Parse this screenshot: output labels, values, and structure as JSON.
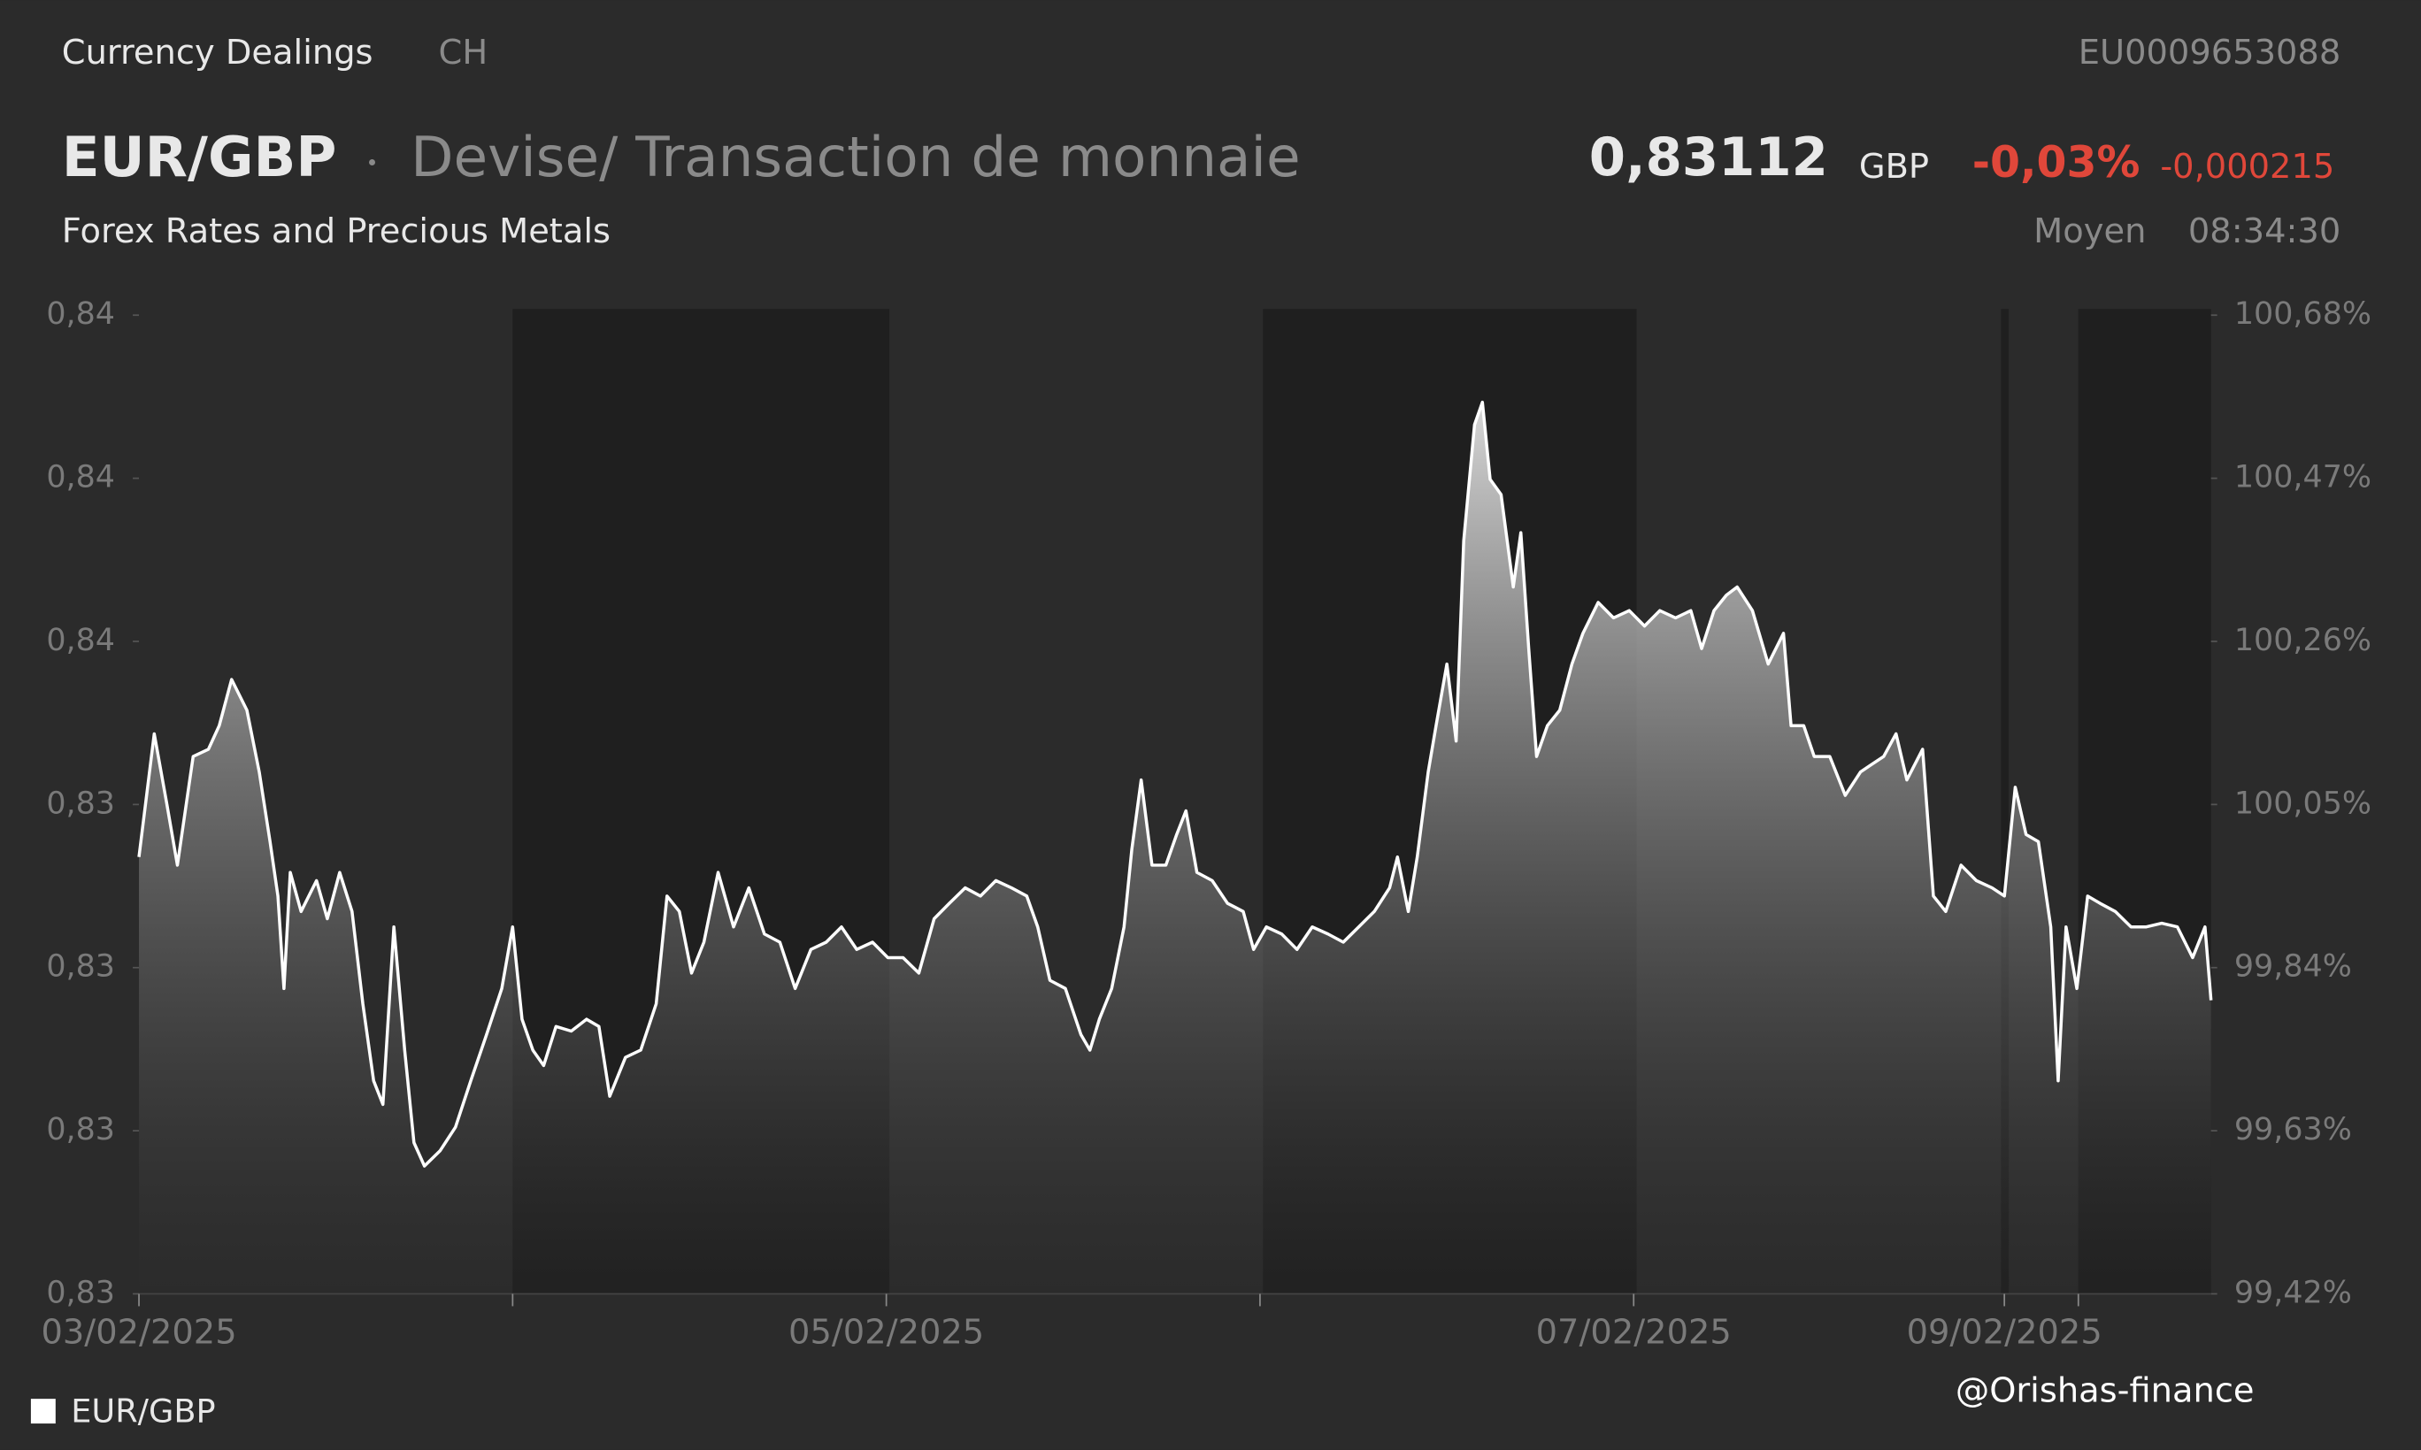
{
  "header": {
    "source": "Currency Dealings",
    "country": "CH",
    "isin": "EU0009653088",
    "symbol": "EUR/GBP",
    "description": "Devise/ Transaction de monnaie",
    "subtitle": "Forex Rates and Precious Metals",
    "price": "0,83112",
    "currency": "GBP",
    "change_pct": "-0,03%",
    "change_abs": "-0,000215",
    "price_type": "Moyen",
    "time": "08:34:30",
    "watermark": "@Orishas-finance"
  },
  "chart_data": {
    "type": "area",
    "x": [
      0,
      0.041,
      0.074,
      0.103,
      0.145,
      0.186,
      0.215,
      0.248,
      0.289,
      0.322,
      0.351,
      0.372,
      0.388,
      0.405,
      0.434,
      0.475,
      0.504,
      0.537,
      0.57,
      0.599,
      0.628,
      0.653,
      0.682,
      0.711,
      0.736,
      0.764,
      0.806,
      0.847,
      0.888,
      0.93,
      0.971,
      1,
      1.025,
      1.054,
      1.083,
      1.116,
      1.157,
      1.198,
      1.231,
      1.26,
      1.302,
      1.343,
      1.384,
      1.413,
      1.446,
      1.479,
      1.512,
      1.55,
      1.591,
      1.632,
      1.674,
      1.715,
      1.756,
      1.798,
      1.839,
      1.88,
      1.921,
      1.963,
      2.004,
      2.045,
      2.087,
      2.128,
      2.169,
      2.211,
      2.252,
      2.293,
      2.335,
      2.376,
      2.405,
      2.438,
      2.479,
      2.521,
      2.545,
      2.57,
      2.603,
      2.636,
      2.657,
      2.682,
      2.711,
      2.748,
      2.777,
      2.802,
      2.831,
      2.872,
      2.913,
      2.955,
      2.983,
      3.017,
      3.058,
      3.099,
      3.14,
      3.182,
      3.223,
      3.264,
      3.306,
      3.347,
      3.368,
      3.397,
      3.421,
      3.45,
      3.471,
      3.5,
      3.525,
      3.545,
      3.574,
      3.595,
      3.616,
      3.645,
      3.678,
      3.698,
      3.719,
      3.74,
      3.769,
      3.802,
      3.835,
      3.864,
      3.905,
      3.946,
      3.988,
      4.029,
      4.07,
      4.112,
      4.153,
      4.182,
      4.215,
      4.248,
      4.277,
      4.318,
      4.36,
      4.401,
      4.421,
      4.455,
      4.483,
      4.525,
      4.566,
      4.607,
      4.636,
      4.669,
      4.702,
      4.731,
      4.773,
      4.802,
      4.835,
      4.876,
      4.917,
      4.959,
      4.992,
      5.021,
      5.05,
      5.083,
      5.116,
      5.136,
      5.157,
      5.186,
      5.215,
      5.248,
      5.289,
      5.331,
      5.372,
      5.413,
      5.455,
      5.496,
      5.529,
      5.545
    ],
    "series": [
      {
        "name": "EUR/GBP",
        "color": "#ffffff",
        "values": [
          0.83282,
          0.83418,
          0.83342,
          0.83273,
          0.83393,
          0.83401,
          0.83427,
          0.83478,
          0.83444,
          0.83376,
          0.83299,
          0.83239,
          0.83137,
          0.83265,
          0.83222,
          0.83256,
          0.83214,
          0.83265,
          0.83222,
          0.8312,
          0.83035,
          0.83009,
          0.83205,
          0.83069,
          0.82967,
          0.82941,
          0.82958,
          0.82984,
          0.83035,
          0.83086,
          0.83137,
          0.83205,
          0.83103,
          0.83069,
          0.83052,
          0.83095,
          0.8309,
          0.83103,
          0.83095,
          0.83018,
          0.83061,
          0.83069,
          0.8312,
          0.83239,
          0.83222,
          0.83154,
          0.83188,
          0.83265,
          0.83205,
          0.83248,
          0.83197,
          0.83188,
          0.83137,
          0.8318,
          0.83188,
          0.83205,
          0.8318,
          0.83188,
          0.83171,
          0.83171,
          0.83154,
          0.83214,
          0.83231,
          0.83248,
          0.83239,
          0.83256,
          0.83248,
          0.83239,
          0.83205,
          0.83146,
          0.83137,
          0.83086,
          0.83069,
          0.83103,
          0.83137,
          0.83205,
          0.8329,
          0.83367,
          0.83273,
          0.83273,
          0.83307,
          0.83333,
          0.83265,
          0.83256,
          0.83231,
          0.83222,
          0.8318,
          0.83205,
          0.83197,
          0.8318,
          0.83205,
          0.83197,
          0.83188,
          0.83205,
          0.83222,
          0.83248,
          0.83282,
          0.83222,
          0.83282,
          0.83376,
          0.83427,
          0.83495,
          0.8341,
          0.83631,
          0.83759,
          0.83784,
          0.83699,
          0.83682,
          0.8358,
          0.8364,
          0.83512,
          0.83393,
          0.83427,
          0.83444,
          0.83495,
          0.83529,
          0.83563,
          0.83546,
          0.83554,
          0.83537,
          0.83554,
          0.83546,
          0.83554,
          0.83512,
          0.83554,
          0.83571,
          0.8358,
          0.83554,
          0.83495,
          0.83529,
          0.83427,
          0.83427,
          0.83393,
          0.83393,
          0.8335,
          0.83376,
          0.83384,
          0.83393,
          0.83418,
          0.83367,
          0.83401,
          0.83239,
          0.83222,
          0.83273,
          0.83256,
          0.83248,
          0.83239,
          0.83359,
          0.83307,
          0.83299,
          0.83205,
          0.83035,
          0.83205,
          0.83137,
          0.83239,
          0.83231,
          0.83222,
          0.83205,
          0.83205,
          0.83209,
          0.83205,
          0.83171,
          0.83205,
          0.83124
        ]
      }
    ],
    "xlim": [
      0,
      5.545
    ],
    "xticks": [
      {
        "value": 0,
        "label": "03/02/2025"
      },
      {
        "value": 2,
        "label": "05/02/2025"
      },
      {
        "value": 4,
        "label": "07/02/2025"
      },
      {
        "value": 4.992,
        "label": "09/02/2025"
      }
    ],
    "minor_xticks": [
      1,
      3,
      5.19
    ],
    "ylim": [
      0.828,
      0.8388
    ],
    "yticks": [
      {
        "value": 0.828,
        "label": "0,83"
      },
      {
        "value": 0.8298,
        "label": "0,83"
      },
      {
        "value": 0.8316,
        "label": "0,83"
      },
      {
        "value": 0.8334,
        "label": "0,83"
      },
      {
        "value": 0.8352,
        "label": "0,84"
      },
      {
        "value": 0.837,
        "label": "0,84"
      },
      {
        "value": 0.8388,
        "label": "0,84"
      }
    ],
    "y2lim": [
      99.42,
      100.68
    ],
    "y2ticks": [
      {
        "value": 99.42,
        "label": "99,42%"
      },
      {
        "value": 99.63,
        "label": "99,63%"
      },
      {
        "value": 99.84,
        "label": "99,84%"
      },
      {
        "value": 100.05,
        "label": "100,05%"
      },
      {
        "value": 100.26,
        "label": "100,26%"
      },
      {
        "value": 100.47,
        "label": "100,47%"
      },
      {
        "value": 100.68,
        "label": "100,68%"
      }
    ]
  }
}
